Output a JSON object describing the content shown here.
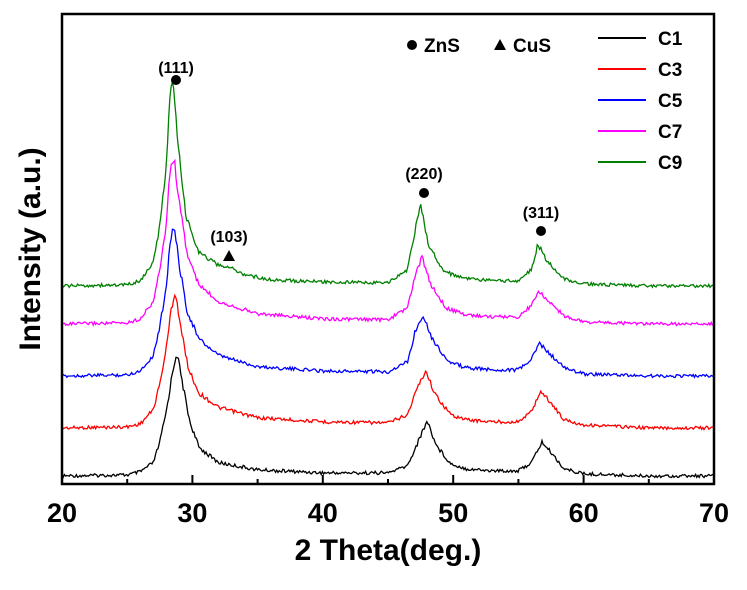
{
  "chart_data": {
    "type": "line",
    "title": "",
    "xlabel": "2 Theta(deg.)",
    "ylabel": "Intensity (a.u.)",
    "xlim": [
      20,
      70
    ],
    "x_ticks": [
      20,
      30,
      40,
      50,
      60,
      70
    ],
    "y_ticks_shown": false,
    "grid": false,
    "legend_position": "top-right",
    "phase_legend": [
      {
        "marker": "circle",
        "label": "ZnS"
      },
      {
        "marker": "triangle",
        "label": "CuS"
      }
    ],
    "peak_annotations": [
      {
        "label": "(111)",
        "x": 28.5,
        "marker": "circle",
        "phase": "ZnS"
      },
      {
        "label": "(103)",
        "x": 32.7,
        "marker": "triangle",
        "phase": "CuS"
      },
      {
        "label": "(220)",
        "x": 47.5,
        "marker": "circle",
        "phase": "ZnS"
      },
      {
        "label": "(311)",
        "x": 56.5,
        "marker": "circle",
        "phase": "ZnS"
      }
    ],
    "series": [
      {
        "name": "C1",
        "color": "#000000",
        "x": [
          20,
          25,
          26,
          27,
          27.5,
          28,
          28.5,
          28.8,
          29.2,
          29.8,
          30.5,
          32,
          35,
          40,
          45,
          46.5,
          47.3,
          48,
          48.7,
          49.8,
          51,
          53,
          55,
          56,
          56.8,
          57.5,
          58.5,
          60,
          65,
          70
        ],
        "y": [
          0.2,
          0.3,
          0.6,
          1.5,
          3.5,
          6.5,
          10.5,
          12.3,
          9.5,
          5.5,
          3.0,
          1.5,
          0.8,
          0.5,
          0.5,
          1.2,
          3.5,
          5.6,
          3.2,
          1.4,
          0.9,
          0.7,
          0.7,
          1.5,
          3.5,
          2.5,
          0.9,
          0.4,
          0.2,
          0.2
        ]
      },
      {
        "name": "C3",
        "color": "#ff0000",
        "x": [
          20,
          25,
          26,
          27,
          27.5,
          28,
          28.4,
          28.7,
          29.1,
          29.7,
          30.5,
          32,
          35,
          40,
          45,
          46.5,
          47.2,
          47.9,
          48.6,
          49.8,
          51,
          53,
          55,
          56,
          56.7,
          57.4,
          58.5,
          60,
          65,
          70
        ],
        "y": [
          0.2,
          0.3,
          0.6,
          2.0,
          4.5,
          8.0,
          12.0,
          13.5,
          10.0,
          6.0,
          3.6,
          2.2,
          1.2,
          0.8,
          0.7,
          1.5,
          4.0,
          5.8,
          3.5,
          1.5,
          1.0,
          0.8,
          0.8,
          1.8,
          3.8,
          2.8,
          1.0,
          0.5,
          0.2,
          0.2
        ]
      },
      {
        "name": "C5",
        "color": "#0000ff",
        "x": [
          20,
          25,
          26,
          27,
          27.5,
          28,
          28.3,
          28.6,
          29.0,
          29.6,
          30.5,
          32,
          35,
          40,
          45,
          46.5,
          47.1,
          47.7,
          48.4,
          49.6,
          51,
          53,
          55,
          56,
          56.6,
          57.3,
          58.5,
          60,
          65,
          70
        ],
        "y": [
          0.2,
          0.3,
          0.7,
          2.2,
          5.0,
          9.0,
          13.5,
          14.8,
          11.0,
          6.5,
          3.8,
          2.2,
          1.1,
          0.7,
          0.6,
          1.6,
          4.6,
          6.2,
          3.8,
          1.6,
          1.0,
          0.8,
          0.8,
          1.8,
          3.4,
          2.5,
          1.0,
          0.4,
          0.2,
          0.2
        ]
      },
      {
        "name": "C7",
        "color": "#ff00ff",
        "x": [
          20,
          25,
          26,
          27,
          27.5,
          28,
          28.3,
          28.6,
          29.0,
          29.6,
          30.5,
          32,
          35,
          40,
          45,
          46.5,
          47.1,
          47.6,
          48.3,
          49.5,
          51,
          53,
          55,
          56,
          56.5,
          57.2,
          58.5,
          60,
          65,
          70
        ],
        "y": [
          0.2,
          0.3,
          0.7,
          2.4,
          5.5,
          10.0,
          15.5,
          16.3,
          12.0,
          7.0,
          4.0,
          2.4,
          1.2,
          0.7,
          0.6,
          1.8,
          5.0,
          6.7,
          4.0,
          1.7,
          1.1,
          0.9,
          0.9,
          2.0,
          3.4,
          2.6,
          1.0,
          0.4,
          0.2,
          0.2
        ]
      },
      {
        "name": "C9",
        "color": "#008000",
        "x": [
          20,
          25,
          26,
          27,
          27.5,
          28,
          28.3,
          28.5,
          28.9,
          29.5,
          30.5,
          32,
          32.7,
          34,
          36,
          40,
          45,
          46.5,
          47.1,
          47.5,
          48.1,
          49.3,
          51,
          53,
          55,
          56,
          56.5,
          57.1,
          58.5,
          60,
          65,
          70
        ],
        "y": [
          0.2,
          0.3,
          0.7,
          2.5,
          6.0,
          12.0,
          19.5,
          20.0,
          14.0,
          7.0,
          3.5,
          2.2,
          2.1,
          1.3,
          0.8,
          0.6,
          0.5,
          1.8,
          5.8,
          8.2,
          4.2,
          1.6,
          0.9,
          0.7,
          0.7,
          1.8,
          4.3,
          2.8,
          0.9,
          0.4,
          0.2,
          0.2
        ]
      }
    ]
  }
}
